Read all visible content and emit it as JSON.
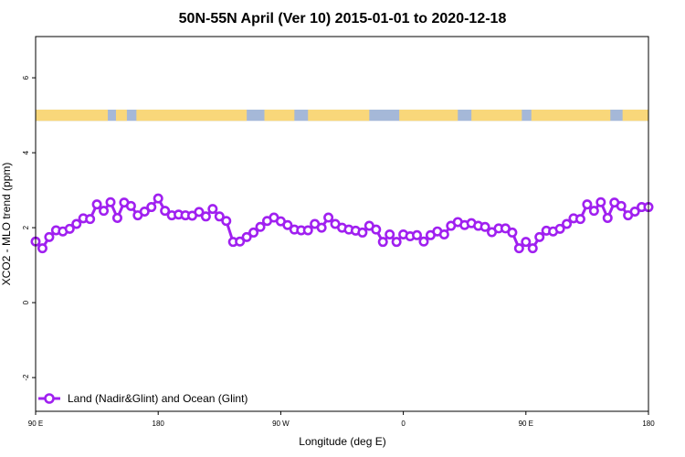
{
  "chart_data": {
    "type": "line",
    "title": "50N-55N April (Ver 10)   2015-01-01 to 2020-12-18",
    "xlabel": "Longitude (deg E)",
    "ylabel": "XCO2 - MLO trend (ppm)",
    "x_ticks": [
      {
        "value": 90,
        "label": "90 E"
      },
      {
        "value": 180,
        "label": "180"
      },
      {
        "value": 270,
        "label": "90 W"
      },
      {
        "value": 360,
        "label": "0"
      },
      {
        "value": 450,
        "label": "90 E"
      },
      {
        "value": 540,
        "label": "180"
      }
    ],
    "y_ticks": [
      {
        "value": -2,
        "label": "-2"
      },
      {
        "value": 0,
        "label": "0"
      },
      {
        "value": 2,
        "label": "2"
      },
      {
        "value": 4,
        "label": "4"
      },
      {
        "value": 6,
        "label": "6"
      }
    ],
    "xlim": [
      90,
      540
    ],
    "ylim": [
      -2.9,
      7.1
    ],
    "grid": false,
    "legend_position": "bottom-left",
    "land_ocean_strip": {
      "ymin": 4.85,
      "ymax": 5.15,
      "land_color": "#f9d77a",
      "ocean_color": "#a5b8d8",
      "land_ranges": [
        [
          90,
          143
        ],
        [
          149,
          157
        ],
        [
          164,
          245
        ],
        [
          258,
          280
        ],
        [
          290,
          335
        ],
        [
          357,
          400
        ],
        [
          410,
          447
        ],
        [
          454,
          512
        ],
        [
          521,
          540
        ]
      ]
    },
    "series": [
      {
        "name": "Land (Nadir&Glint) and Ocean (Glint)",
        "color": "#a020f0",
        "x": [
          90,
          95,
          100,
          105,
          110,
          115,
          120,
          125,
          130,
          135,
          140,
          145,
          150,
          155,
          160,
          165,
          170,
          175,
          180,
          185,
          190,
          195,
          200,
          205,
          210,
          215,
          220,
          225,
          230,
          235,
          240,
          245,
          250,
          255,
          260,
          265,
          270,
          275,
          280,
          285,
          290,
          295,
          300,
          305,
          310,
          315,
          320,
          325,
          330,
          335,
          340,
          345,
          350,
          355,
          360,
          365,
          370,
          375,
          380,
          385,
          390,
          395,
          400,
          405,
          410,
          415,
          420,
          425,
          430,
          435,
          440,
          445,
          450,
          455,
          460,
          465,
          470,
          475,
          480,
          485,
          490,
          495,
          500,
          505,
          510,
          515,
          520,
          525,
          530,
          535,
          540
        ],
        "y": [
          1.63,
          1.45,
          1.75,
          1.93,
          1.9,
          1.97,
          2.1,
          2.25,
          2.23,
          2.62,
          2.45,
          2.68,
          2.26,
          2.67,
          2.58,
          2.33,
          2.43,
          2.55,
          2.78,
          2.45,
          2.33,
          2.35,
          2.33,
          2.32,
          2.42,
          2.3,
          2.5,
          2.3,
          2.18,
          1.62,
          1.63,
          1.75,
          1.87,
          2.02,
          2.18,
          2.27,
          2.17,
          2.07,
          1.95,
          1.93,
          1.93,
          2.1,
          2.0,
          2.27,
          2.1,
          2.0,
          1.95,
          1.92,
          1.87,
          2.05,
          1.95,
          1.62,
          1.82,
          1.62,
          1.82,
          1.77,
          1.8,
          1.63,
          1.8,
          1.9,
          1.82,
          2.05,
          2.15,
          2.07,
          2.12,
          2.05,
          2.02,
          1.88,
          1.98,
          1.98,
          1.87,
          1.45,
          1.62,
          1.45,
          1.75,
          1.92,
          1.9,
          1.97,
          2.1,
          2.25,
          2.23,
          2.62,
          2.45,
          2.68,
          2.26,
          2.67,
          2.58,
          2.33,
          2.43,
          2.55,
          2.55
        ]
      }
    ]
  }
}
